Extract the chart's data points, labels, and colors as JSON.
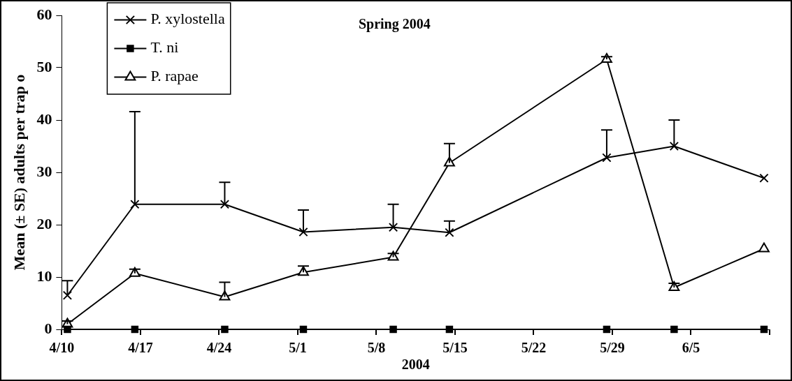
{
  "chart_data": {
    "type": "line",
    "title": "Spring 2004",
    "xlabel": "2004",
    "ylabel": "Mean (± SE) adults per trap o",
    "x": [
      "2004-04-10T12:00",
      "2004-04-16T12:00",
      "2004-04-24T12:00",
      "2004-05-01T12:00",
      "2004-05-09T12:00",
      "2004-05-14T12:00",
      "2004-05-28T12:00",
      "2004-06-03T12:00",
      "2004-06-11T12:00"
    ],
    "series": [
      {
        "name": "P. xylostella",
        "color": "#000000",
        "marker": "cross",
        "values": [
          6.5,
          23.9,
          23.9,
          18.6,
          19.5,
          18.5,
          32.8,
          35.0,
          28.9
        ],
        "errors": [
          [
            6.5,
            9.3
          ],
          [
            23.9,
            41.6
          ],
          [
            23.9,
            28.1
          ],
          [
            18.6,
            22.8
          ],
          [
            19.5,
            23.9
          ],
          [
            18.5,
            20.7
          ],
          [
            32.8,
            38.1
          ],
          [
            35.0,
            40.0
          ],
          null
        ]
      },
      {
        "name": "T. ni",
        "color": "#000000",
        "marker": "square",
        "values": [
          0,
          0,
          0,
          0,
          0,
          0,
          0,
          0,
          0
        ]
      },
      {
        "name": "P. rapae",
        "color": "#000000",
        "marker": "triangle",
        "values": [
          1.0,
          10.7,
          6.2,
          10.9,
          13.8,
          31.8,
          51.6,
          8.0,
          15.4
        ],
        "errors": [
          [
            1.0,
            1.6
          ],
          [
            10.7,
            11.5
          ],
          [
            6.2,
            9.0
          ],
          [
            10.9,
            12.1
          ],
          [
            13.8,
            14.5
          ],
          [
            31.8,
            35.5
          ],
          [
            51.6,
            52.1
          ],
          [
            8.0,
            8.8
          ],
          null
        ]
      }
    ],
    "xlim": [
      "2004-04-10",
      "2004-06-12"
    ],
    "xticks": [
      {
        "value": "2004-04-10",
        "label": "4/10"
      },
      {
        "value": "2004-04-17",
        "label": "4/17"
      },
      {
        "value": "2004-04-24",
        "label": "4/24"
      },
      {
        "value": "2004-05-01",
        "label": "5/1"
      },
      {
        "value": "2004-05-08",
        "label": "5/8"
      },
      {
        "value": "2004-05-15",
        "label": "5/15"
      },
      {
        "value": "2004-05-22",
        "label": "5/22"
      },
      {
        "value": "2004-05-29",
        "label": "5/29"
      },
      {
        "value": "2004-06-05",
        "label": "6/5"
      },
      {
        "value": "2004-06-12",
        "label": null
      }
    ],
    "ylim": [
      0,
      60
    ],
    "yticks": [
      0,
      10,
      20,
      30,
      40,
      50,
      60
    ],
    "grid": false,
    "legend": "top left",
    "line_style": "solid"
  }
}
